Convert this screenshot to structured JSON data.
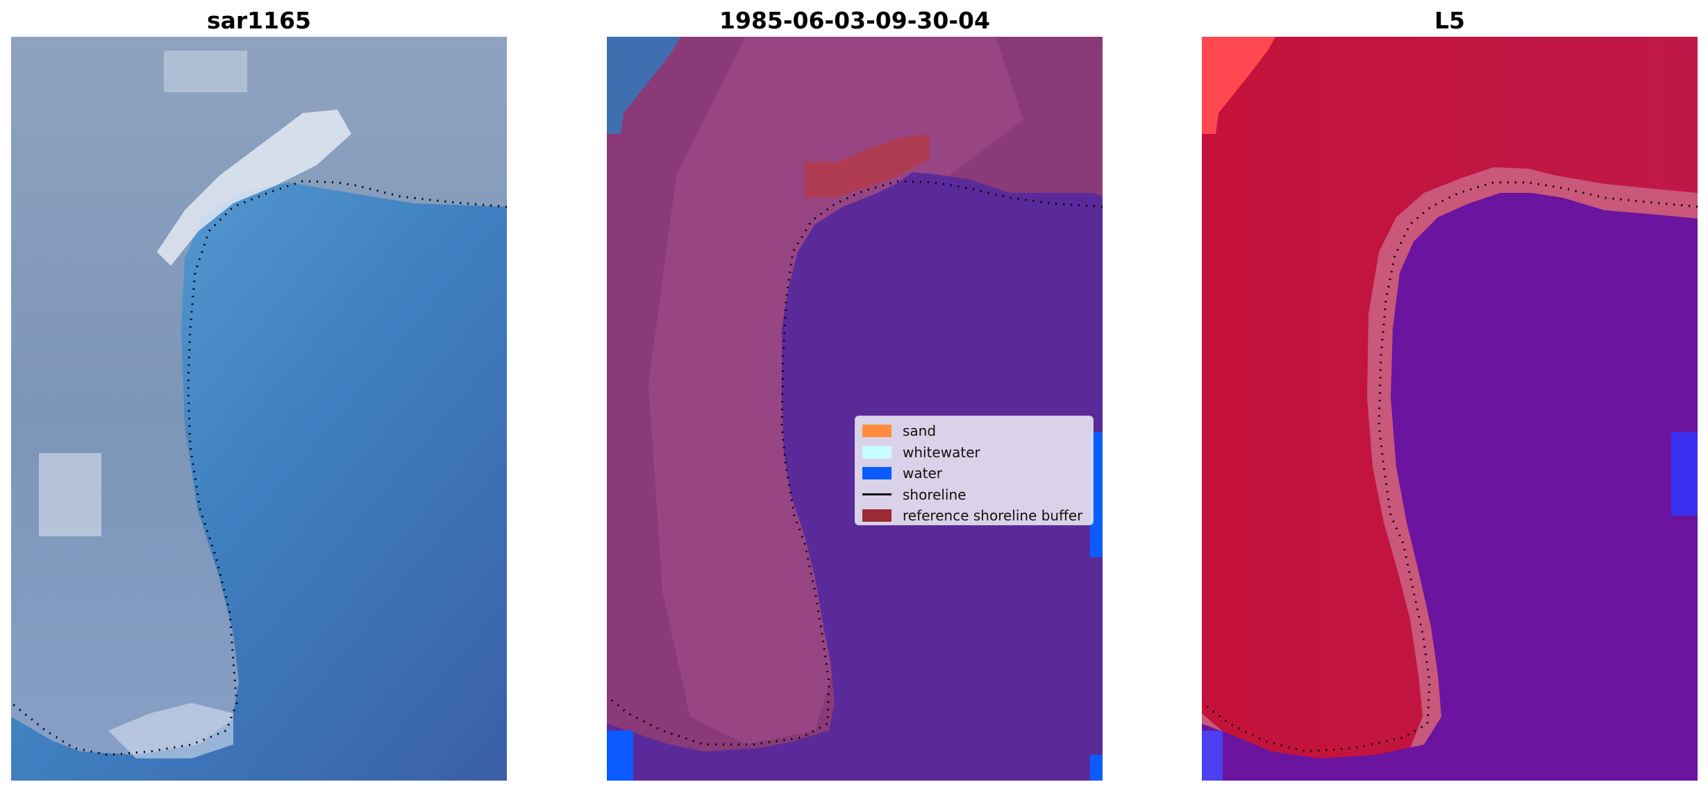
{
  "panels": [
    {
      "title": "sar1165"
    },
    {
      "title": "1985-06-03-09-30-04"
    },
    {
      "title": "L5"
    }
  ],
  "legend": {
    "items": [
      {
        "label": "sand",
        "color": "#ff8c3f",
        "kind": "patch"
      },
      {
        "label": "whitewater",
        "color": "#c6fffe",
        "kind": "patch"
      },
      {
        "label": "water",
        "color": "#0a5cff",
        "kind": "patch"
      },
      {
        "label": "shoreline",
        "color": "#000000",
        "kind": "line"
      },
      {
        "label": "reference shoreline buffer",
        "color": "#9b2a35",
        "kind": "patch"
      }
    ]
  },
  "colors": {
    "land_rgb": "#8a9db8",
    "water_rgb": "#3b6fb0",
    "foam_rgb": "#e8eef6",
    "land_class": "#8a3a78",
    "water_class": "#5a2a9a",
    "index_positive": "#c0183c",
    "index_negative": "#6a14a0"
  }
}
